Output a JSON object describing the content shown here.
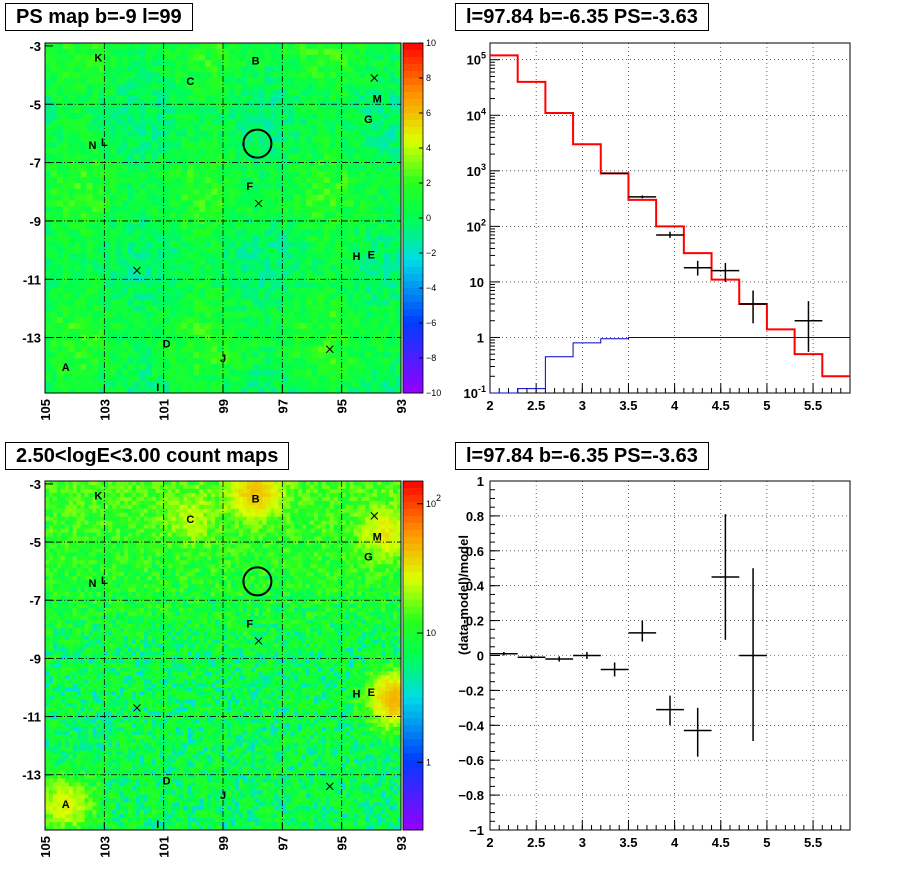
{
  "titles": {
    "ps_map": "PS map b=-9 l=99",
    "spectrum": "l=97.84 b=-6.35 PS=-3.63",
    "count_map": "2.50<logE<3.00 count maps",
    "residual": "l=97.84 b=-6.35 PS=-3.63"
  },
  "colors": {
    "model_line": "#ff0000",
    "background_line": "#0000cc",
    "data_marker": "#000000"
  },
  "chart_data": [
    {
      "type": "heatmap",
      "name": "ps_map",
      "x_ticks": [
        "105",
        "103",
        "101",
        "99",
        "97",
        "95",
        "93"
      ],
      "y_ticks": [
        "-3",
        "-5",
        "-7",
        "-9",
        "-11",
        "-13"
      ],
      "xlim": [
        105,
        93
      ],
      "ylim": [
        -14.9,
        -2.9
      ],
      "colorbar_ticks": [
        "10",
        "8",
        "6",
        "4",
        "2",
        "0",
        "−2",
        "−4",
        "−6",
        "−8",
        "−10"
      ],
      "colorbar_range": [
        -10,
        10
      ],
      "typical_value": 0.5,
      "sources": [
        {
          "label": "K",
          "l": 103.2,
          "b": -3.4
        },
        {
          "label": "C",
          "l": 100.1,
          "b": -4.2
        },
        {
          "label": "B",
          "l": 97.9,
          "b": -3.5
        },
        {
          "label": "M",
          "l": 93.8,
          "b": -4.8
        },
        {
          "label": "G",
          "l": 94.1,
          "b": -5.5
        },
        {
          "label": "N",
          "l": 103.4,
          "b": -6.4
        },
        {
          "label": "L",
          "l": 103.0,
          "b": -6.3
        },
        {
          "label": "F",
          "l": 98.1,
          "b": -7.8
        },
        {
          "label": "H",
          "l": 94.5,
          "b": -10.2
        },
        {
          "label": "E",
          "l": 94.0,
          "b": -10.15
        },
        {
          "label": "D",
          "l": 100.9,
          "b": -13.2
        },
        {
          "label": "J",
          "l": 99.0,
          "b": -13.7
        },
        {
          "label": "A",
          "l": 104.3,
          "b": -14.0
        },
        {
          "label": "I",
          "l": 101.2,
          "b": -14.7
        }
      ],
      "crosses": [
        {
          "l": 93.9,
          "b": -4.1
        },
        {
          "l": 97.8,
          "b": -8.4
        },
        {
          "l": 101.9,
          "b": -10.7
        },
        {
          "l": 95.4,
          "b": -13.4
        }
      ],
      "circle": {
        "l": 97.84,
        "b": -6.35
      }
    },
    {
      "type": "line",
      "name": "spectrum",
      "xlim": [
        2.0,
        5.9
      ],
      "ylim": [
        0.1,
        200000
      ],
      "y_scale": "log",
      "x_ticks": [
        "2",
        "2.5",
        "3",
        "3.5",
        "4",
        "4.5",
        "5",
        "5.5"
      ],
      "y_ticks": [
        "10^-1",
        "1",
        "10",
        "10^2",
        "10^3",
        "10^4",
        "10^5"
      ],
      "model_steps": [
        {
          "x0": 2.0,
          "x1": 2.3,
          "y": 120000
        },
        {
          "x0": 2.3,
          "x1": 2.6,
          "y": 40000
        },
        {
          "x0": 2.6,
          "x1": 2.9,
          "y": 11000
        },
        {
          "x0": 2.9,
          "x1": 3.2,
          "y": 3000
        },
        {
          "x0": 3.2,
          "x1": 3.5,
          "y": 900
        },
        {
          "x0": 3.5,
          "x1": 3.8,
          "y": 300
        },
        {
          "x0": 3.8,
          "x1": 4.1,
          "y": 100
        },
        {
          "x0": 4.1,
          "x1": 4.4,
          "y": 33
        },
        {
          "x0": 4.4,
          "x1": 4.7,
          "y": 11
        },
        {
          "x0": 4.7,
          "x1": 5.0,
          "y": 4
        },
        {
          "x0": 5.0,
          "x1": 5.3,
          "y": 1.4
        },
        {
          "x0": 5.3,
          "x1": 5.6,
          "y": 0.5
        },
        {
          "x0": 5.6,
          "x1": 5.9,
          "y": 0.2
        }
      ],
      "background_steps": [
        {
          "x0": 2.0,
          "x1": 2.3,
          "y": 0.1
        },
        {
          "x0": 2.3,
          "x1": 2.6,
          "y": 0.12
        },
        {
          "x0": 2.6,
          "x1": 2.9,
          "y": 0.45
        },
        {
          "x0": 2.9,
          "x1": 3.2,
          "y": 0.8
        },
        {
          "x0": 3.2,
          "x1": 3.5,
          "y": 0.95
        },
        {
          "x0": 3.5,
          "x1": 5.9,
          "y": 1.0
        }
      ],
      "data_points": [
        {
          "x": 3.35,
          "y": 900,
          "xerr": 0.15,
          "ylo": 880,
          "yhi": 920
        },
        {
          "x": 3.65,
          "y": 340,
          "xerr": 0.15,
          "ylo": 320,
          "yhi": 360
        },
        {
          "x": 3.95,
          "y": 70,
          "xerr": 0.15,
          "ylo": 62,
          "yhi": 80
        },
        {
          "x": 4.25,
          "y": 18,
          "xerr": 0.15,
          "ylo": 13,
          "yhi": 24
        },
        {
          "x": 4.55,
          "y": 16,
          "xerr": 0.15,
          "ylo": 10,
          "yhi": 22
        },
        {
          "x": 4.85,
          "y": 4,
          "xerr": 0.15,
          "ylo": 1.8,
          "yhi": 7
        },
        {
          "x": 5.45,
          "y": 2,
          "xerr": 0.15,
          "ylo": 0.55,
          "yhi": 4.5
        }
      ]
    },
    {
      "type": "heatmap",
      "name": "count_map",
      "x_ticks": [
        "105",
        "103",
        "101",
        "99",
        "97",
        "95",
        "93"
      ],
      "y_ticks": [
        "-3",
        "-5",
        "-7",
        "-9",
        "-11",
        "-13"
      ],
      "xlim": [
        105,
        93
      ],
      "ylim": [
        -14.9,
        -2.9
      ],
      "colorbar_ticks": [
        {
          "label": "10^2",
          "value": 100
        },
        {
          "label": "10",
          "value": 10
        },
        {
          "label": "1",
          "value": 1
        }
      ],
      "colorbar_range_log": [
        0.3,
        150
      ],
      "sources": [
        {
          "label": "K",
          "l": 103.2,
          "b": -3.4
        },
        {
          "label": "C",
          "l": 100.1,
          "b": -4.2
        },
        {
          "label": "B",
          "l": 97.9,
          "b": -3.5
        },
        {
          "label": "M",
          "l": 93.8,
          "b": -4.8
        },
        {
          "label": "G",
          "l": 94.1,
          "b": -5.5
        },
        {
          "label": "N",
          "l": 103.4,
          "b": -6.4
        },
        {
          "label": "L",
          "l": 103.0,
          "b": -6.3
        },
        {
          "label": "F",
          "l": 98.1,
          "b": -7.8
        },
        {
          "label": "H",
          "l": 94.5,
          "b": -10.2
        },
        {
          "label": "E",
          "l": 94.0,
          "b": -10.15
        },
        {
          "label": "D",
          "l": 100.9,
          "b": -13.2
        },
        {
          "label": "J",
          "l": 99.0,
          "b": -13.7
        },
        {
          "label": "A",
          "l": 104.3,
          "b": -14.0
        },
        {
          "label": "I",
          "l": 101.2,
          "b": -14.7
        }
      ],
      "crosses": [
        {
          "l": 93.9,
          "b": -4.1
        },
        {
          "l": 97.8,
          "b": -8.4
        },
        {
          "l": 101.9,
          "b": -10.7
        },
        {
          "l": 95.4,
          "b": -13.4
        }
      ],
      "circle": {
        "l": 97.84,
        "b": -6.35
      }
    },
    {
      "type": "scatter",
      "name": "residual",
      "xlim": [
        2.0,
        5.9
      ],
      "ylim": [
        -1.0,
        1.0
      ],
      "ylabel": "(data-model)/model",
      "x_ticks": [
        "2",
        "2.5",
        "3",
        "3.5",
        "4",
        "4.5",
        "5",
        "5.5"
      ],
      "y_ticks": [
        "1",
        "0.8",
        "0.6",
        "0.4",
        "0.2",
        "0",
        "−0.2",
        "−0.4",
        "−0.6",
        "−0.8",
        "−1"
      ],
      "data_points": [
        {
          "x": 2.15,
          "y": 0.01,
          "xerr": 0.15,
          "ylo": 0.0,
          "yhi": 0.02
        },
        {
          "x": 2.45,
          "y": -0.01,
          "xerr": 0.15,
          "ylo": -0.02,
          "yhi": 0.0
        },
        {
          "x": 2.75,
          "y": -0.02,
          "xerr": 0.15,
          "ylo": -0.035,
          "yhi": -0.005
        },
        {
          "x": 3.05,
          "y": 0.0,
          "xerr": 0.15,
          "ylo": -0.02,
          "yhi": 0.02
        },
        {
          "x": 3.35,
          "y": -0.08,
          "xerr": 0.15,
          "ylo": -0.12,
          "yhi": -0.04
        },
        {
          "x": 3.65,
          "y": 0.13,
          "xerr": 0.15,
          "ylo": 0.08,
          "yhi": 0.2
        },
        {
          "x": 3.95,
          "y": -0.31,
          "xerr": 0.15,
          "ylo": -0.4,
          "yhi": -0.23
        },
        {
          "x": 4.25,
          "y": -0.43,
          "xerr": 0.15,
          "ylo": -0.58,
          "yhi": -0.3
        },
        {
          "x": 4.55,
          "y": 0.45,
          "xerr": 0.15,
          "ylo": 0.09,
          "yhi": 0.81
        },
        {
          "x": 4.85,
          "y": 0.0,
          "xerr": 0.15,
          "ylo": -0.49,
          "yhi": 0.5
        }
      ]
    }
  ]
}
